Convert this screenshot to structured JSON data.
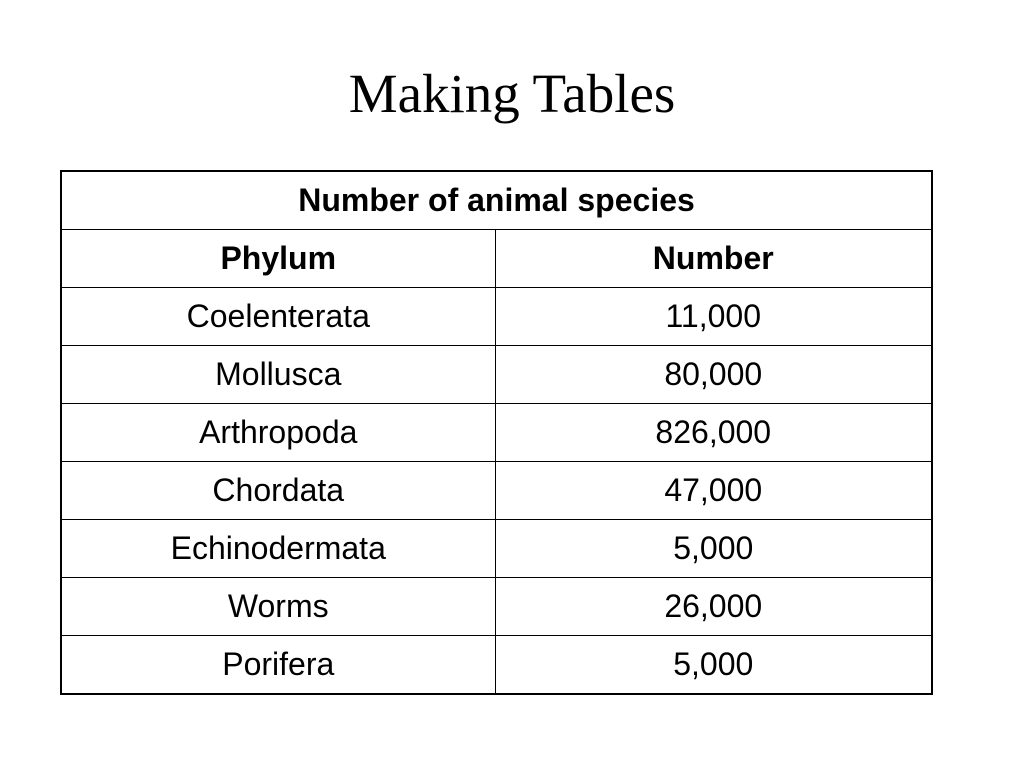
{
  "slide": {
    "title": "Making Tables"
  },
  "table": {
    "caption": "Number of animal species",
    "headers": [
      "Phylum",
      "Number"
    ],
    "rows": [
      [
        "Coelenterata",
        "11,000"
      ],
      [
        "Mollusca",
        "80,000"
      ],
      [
        "Arthropoda",
        "826,000"
      ],
      [
        "Chordata",
        "47,000"
      ],
      [
        "Echinodermata",
        "5,000"
      ],
      [
        "Worms",
        "26,000"
      ],
      [
        "Porifera",
        "5,000"
      ]
    ]
  }
}
